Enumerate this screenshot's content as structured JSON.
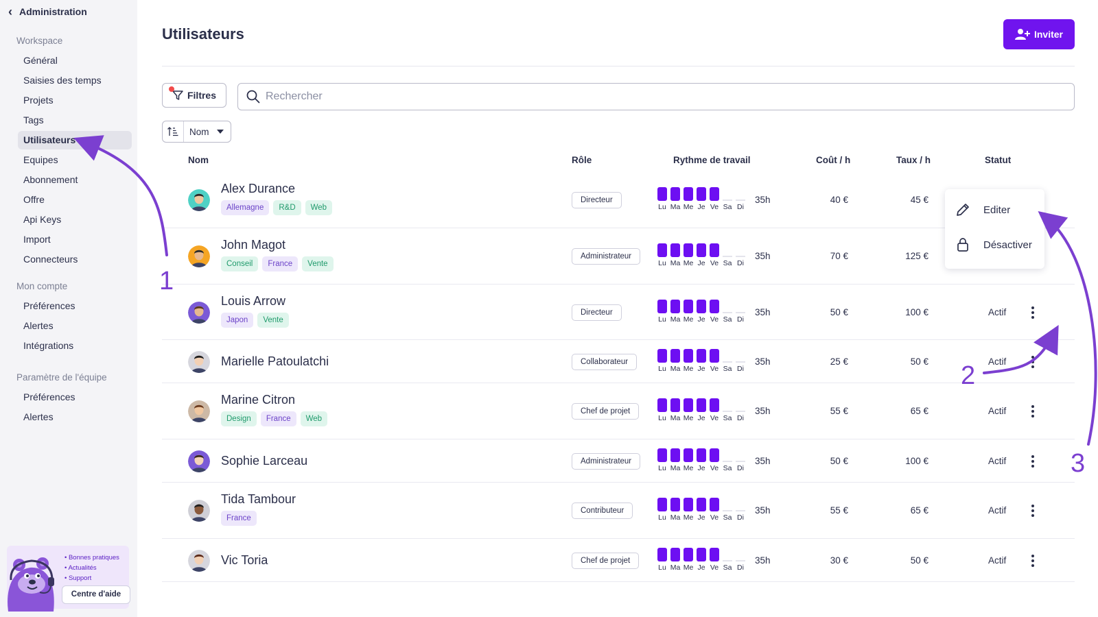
{
  "sidebar": {
    "back_label": "Administration",
    "sections": [
      {
        "title": "Workspace",
        "items": [
          "Général",
          "Saisies des temps",
          "Projets",
          "Tags",
          "Utilisateurs",
          "Equipes",
          "Abonnement",
          "Offre",
          "Api Keys",
          "Import",
          "Connecteurs"
        ]
      },
      {
        "title": "Mon compte",
        "items": [
          "Préférences",
          "Alertes",
          "Intégrations"
        ]
      },
      {
        "title": "Paramètre de l'équipe",
        "items": [
          "Préférences",
          "Alertes"
        ]
      }
    ],
    "active_item": "Utilisateurs",
    "help": {
      "links": [
        "• Bonnes pratiques",
        "• Actualités",
        "• Support"
      ],
      "button": "Centre d'aide"
    }
  },
  "header": {
    "title": "Utilisateurs",
    "invite_label": "Inviter"
  },
  "toolbar": {
    "filters_label": "Filtres",
    "search_placeholder": "Rechercher",
    "sort_label": "Nom"
  },
  "table": {
    "columns": [
      "Nom",
      "Rôle",
      "Rythme de travail",
      "Coût / h",
      "Taux / h",
      "Statut"
    ],
    "days": [
      "Lu",
      "Ma",
      "Me",
      "Je",
      "Ve",
      "Sa",
      "Di"
    ],
    "rows": [
      {
        "name": "Alex Durance",
        "tags": [
          {
            "label": "Allemagne",
            "color": "purple"
          },
          {
            "label": "R&D",
            "color": "green"
          },
          {
            "label": "Web",
            "color": "green"
          }
        ],
        "role": "Directeur",
        "days_active": [
          true,
          true,
          true,
          true,
          true,
          false,
          false
        ],
        "hours": "35h",
        "cost": "40 €",
        "rate": "45 €",
        "status": ""
      },
      {
        "name": "John Magot",
        "tags": [
          {
            "label": "Conseil",
            "color": "green"
          },
          {
            "label": "France",
            "color": "purple"
          },
          {
            "label": "Vente",
            "color": "green"
          }
        ],
        "role": "Administrateur",
        "days_active": [
          true,
          true,
          true,
          true,
          true,
          false,
          false
        ],
        "hours": "35h",
        "cost": "70 €",
        "rate": "125 €",
        "status": ""
      },
      {
        "name": "Louis Arrow",
        "tags": [
          {
            "label": "Japon",
            "color": "purple"
          },
          {
            "label": "Vente",
            "color": "green"
          }
        ],
        "role": "Directeur",
        "days_active": [
          true,
          true,
          true,
          true,
          true,
          false,
          false
        ],
        "hours": "35h",
        "cost": "50 €",
        "rate": "100 €",
        "status": "Actif"
      },
      {
        "name": "Marielle Patoulatchi",
        "tags": [],
        "role": "Collaborateur",
        "days_active": [
          true,
          true,
          true,
          true,
          true,
          false,
          false
        ],
        "hours": "35h",
        "cost": "25 €",
        "rate": "50 €",
        "status": "Actif"
      },
      {
        "name": "Marine Citron",
        "tags": [
          {
            "label": "Design",
            "color": "green"
          },
          {
            "label": "France",
            "color": "purple"
          },
          {
            "label": "Web",
            "color": "green"
          }
        ],
        "role": "Chef de projet",
        "days_active": [
          true,
          true,
          true,
          true,
          true,
          false,
          false
        ],
        "hours": "35h",
        "cost": "55 €",
        "rate": "65 €",
        "status": "Actif"
      },
      {
        "name": "Sophie Larceau",
        "tags": [],
        "role": "Administrateur",
        "days_active": [
          true,
          true,
          true,
          true,
          true,
          false,
          false
        ],
        "hours": "35h",
        "cost": "50 €",
        "rate": "100 €",
        "status": "Actif"
      },
      {
        "name": "Tida Tambour",
        "tags": [
          {
            "label": "France",
            "color": "purple"
          }
        ],
        "role": "Contributeur",
        "days_active": [
          true,
          true,
          true,
          true,
          true,
          false,
          false
        ],
        "hours": "35h",
        "cost": "55 €",
        "rate": "65 €",
        "status": "Actif"
      },
      {
        "name": "Vic Toria",
        "tags": [],
        "role": "Chef de projet",
        "days_active": [
          true,
          true,
          true,
          true,
          true,
          false,
          false
        ],
        "hours": "35h",
        "cost": "30 €",
        "rate": "50 €",
        "status": "Actif"
      }
    ]
  },
  "context_menu": {
    "edit_label": "Editer",
    "deactivate_label": "Désactiver"
  },
  "annotations": [
    "1",
    "2",
    "3"
  ],
  "colors": {
    "accent": "#7014ee",
    "annotation": "#7b3fd0",
    "tag_purple_bg": "#ede7fb",
    "tag_green_bg": "#dff5ec"
  }
}
